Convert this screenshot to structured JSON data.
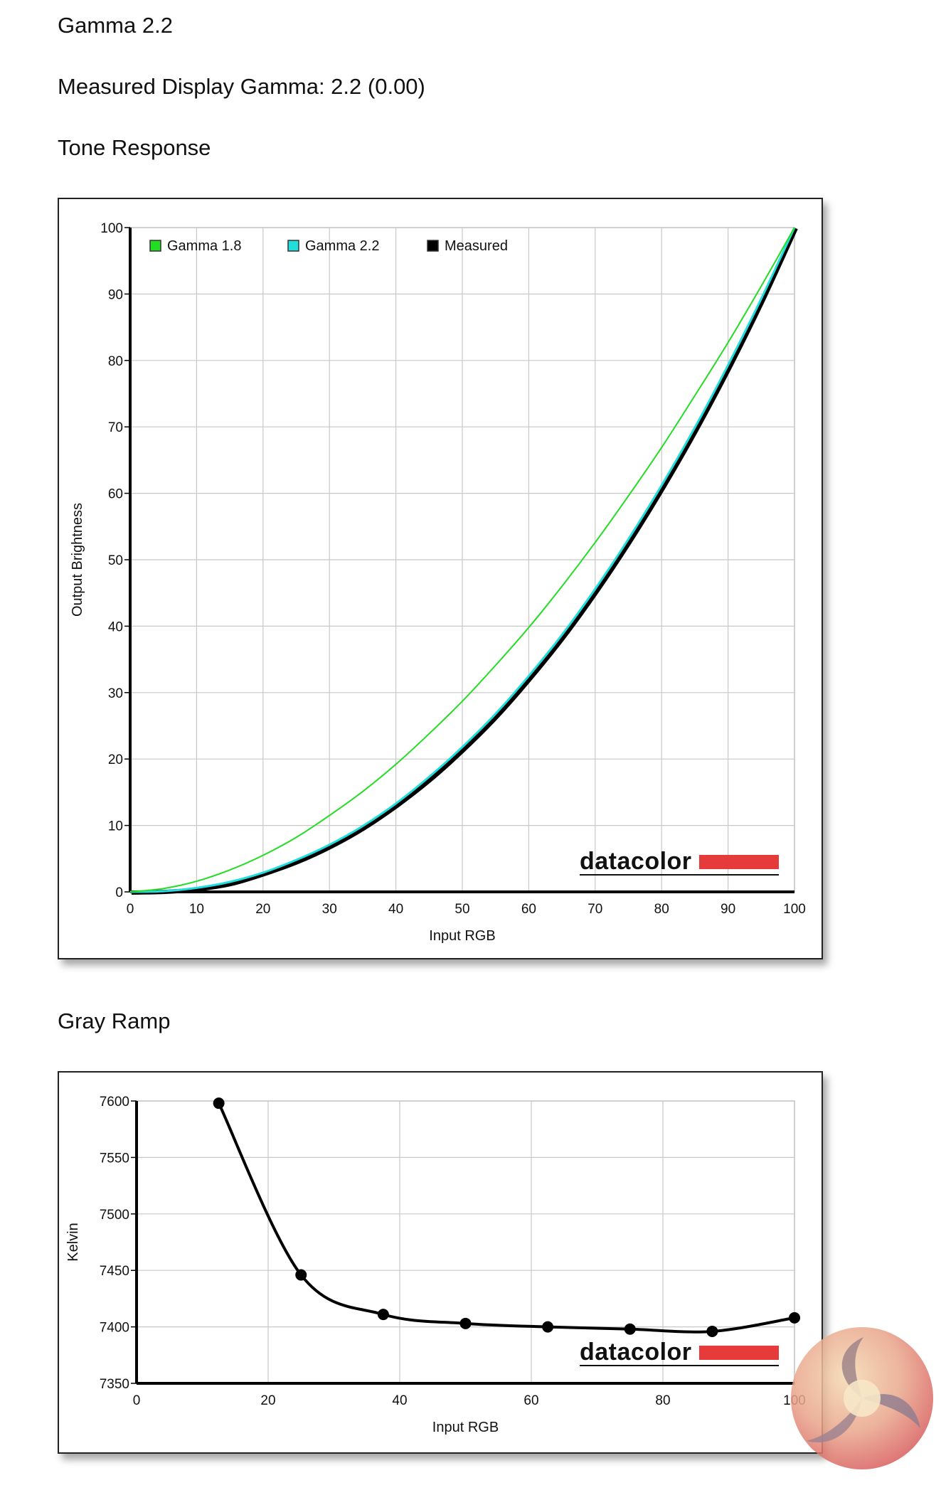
{
  "page": {
    "heading": "Gamma 2.2",
    "measured_label": "Measured Display Gamma: 2.2 (0.00)",
    "tone_title": "Tone Response",
    "gray_title": "Gray Ramp"
  },
  "watermark_text": "datacolor",
  "chart_data": [
    {
      "type": "line",
      "xlabel": "Input RGB",
      "ylabel": "Output Brightness",
      "xlim": [
        0,
        100
      ],
      "ylim": [
        0,
        100
      ],
      "xticks": [
        0,
        10,
        20,
        30,
        40,
        50,
        60,
        70,
        80,
        90,
        100
      ],
      "yticks": [
        0,
        10,
        20,
        30,
        40,
        50,
        60,
        70,
        80,
        90,
        100
      ],
      "grid": true,
      "legend_position": "top-left",
      "x": [
        0,
        5,
        10,
        15,
        20,
        25,
        30,
        35,
        40,
        45,
        50,
        55,
        60,
        65,
        70,
        75,
        80,
        85,
        90,
        95,
        100
      ],
      "series": [
        {
          "name": "Gamma 1.8",
          "color": "#22dd22",
          "values": [
            0,
            0.5,
            1.6,
            3.3,
            5.5,
            8.2,
            11.5,
            15.1,
            19.2,
            23.8,
            28.7,
            34.1,
            39.8,
            46.0,
            52.6,
            59.6,
            66.9,
            74.7,
            82.7,
            91.2,
            100
          ]
        },
        {
          "name": "Gamma 2.2",
          "color": "#22dddd",
          "values": [
            0,
            0.1,
            0.6,
            1.5,
            2.9,
            4.8,
            7.1,
            9.9,
            13.3,
            17.3,
            21.8,
            26.8,
            32.5,
            38.7,
            45.6,
            53.1,
            61.2,
            69.9,
            79.3,
            89.3,
            100
          ]
        },
        {
          "name": "Measured",
          "color": "#000000",
          "values": [
            0,
            0.1,
            0.5,
            1.3,
            2.8,
            4.6,
            6.9,
            9.7,
            13.1,
            17.0,
            21.5,
            26.5,
            32.2,
            38.4,
            45.3,
            52.8,
            60.9,
            69.6,
            79.0,
            89.1,
            100
          ]
        }
      ]
    },
    {
      "type": "line",
      "xlabel": "Input RGB",
      "ylabel": "Kelvin",
      "xlim": [
        0,
        100
      ],
      "ylim": [
        7350,
        7600
      ],
      "xticks": [
        0,
        20,
        40,
        60,
        80,
        100
      ],
      "yticks": [
        7350,
        7400,
        7450,
        7500,
        7550,
        7600
      ],
      "grid": true,
      "series": [
        {
          "color": "#000000",
          "x": [
            12.5,
            25,
            37.5,
            50,
            62.5,
            75,
            87.5,
            100
          ],
          "values": [
            7598,
            7446,
            7411,
            7403,
            7400,
            7398,
            7396,
            7408
          ]
        }
      ]
    }
  ]
}
